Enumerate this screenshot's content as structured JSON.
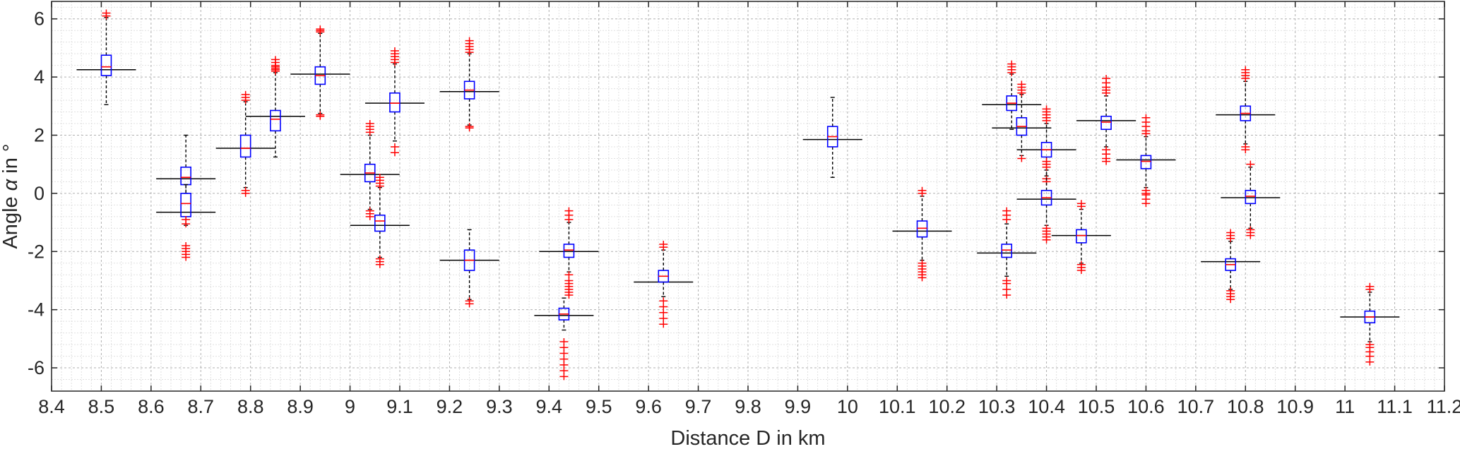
{
  "chart_data": {
    "type": "box",
    "xlabel": "Distance D in km",
    "ylabel_prefix": "Angle ",
    "ylabel_symbol": "α",
    "ylabel_suffix": " in °",
    "xlim": [
      8.4,
      11.2
    ],
    "ylim": [
      -6.8,
      6.6
    ],
    "x_ticks": [
      8.4,
      8.5,
      8.6,
      8.7,
      8.8,
      8.9,
      9.0,
      9.1,
      9.2,
      9.3,
      9.4,
      9.5,
      9.6,
      9.7,
      9.8,
      9.9,
      10.0,
      10.1,
      10.2,
      10.3,
      10.4,
      10.5,
      10.6,
      10.7,
      10.8,
      10.9,
      11.0,
      11.1,
      11.2
    ],
    "x_tick_labels": [
      "8.4",
      "8.5",
      "8.6",
      "8.7",
      "8.8",
      "8.9",
      "9",
      "9.1",
      "9.2",
      "9.3",
      "9.4",
      "9.5",
      "9.6",
      "9.7",
      "9.8",
      "9.9",
      "10",
      "10.1",
      "10.2",
      "10.3",
      "10.4",
      "10.5",
      "10.6",
      "10.7",
      "10.8",
      "10.9",
      "11",
      "11.1",
      "11.2"
    ],
    "y_ticks": [
      -6,
      -4,
      -2,
      0,
      2,
      4,
      6
    ],
    "y_tick_labels": [
      "-6",
      "-4",
      "-2",
      "0",
      "2",
      "4",
      "6"
    ],
    "grid": true,
    "minor_grid": true,
    "colors": {
      "box": "#0000ff",
      "median": "#ff0000",
      "outlier": "#ff0000",
      "whisker": "#000000",
      "reference_line": "#000000",
      "grid_major": "#b0b0b0",
      "grid_minor": "#e0e0e0"
    },
    "boxes": [
      {
        "x": 8.51,
        "q1": 4.05,
        "median": 4.35,
        "q3": 4.75,
        "whisker_low": 3.05,
        "whisker_high": 6.05,
        "ref": 4.25,
        "outliers": [
          6.1,
          6.2
        ]
      },
      {
        "x": 8.67,
        "q1": 0.3,
        "median": 0.55,
        "q3": 0.9,
        "whisker_low": 0.0,
        "whisker_high": 2.0,
        "ref": 0.5,
        "outliers": []
      },
      {
        "x": 8.67,
        "q1": -0.8,
        "median": -0.35,
        "q3": 0.0,
        "whisker_low": -1.1,
        "whisker_high": 0.3,
        "ref": -0.65,
        "outliers": [
          -1.8,
          -1.9,
          -2.0,
          -2.1,
          -2.2,
          -0.9,
          -1.05
        ]
      },
      {
        "x": 8.79,
        "q1": 1.25,
        "median": 1.55,
        "q3": 2.0,
        "whisker_low": 0.2,
        "whisker_high": 3.15,
        "ref": 1.55,
        "outliers": [
          3.2,
          3.3,
          3.4,
          0.1,
          0.0
        ]
      },
      {
        "x": 8.85,
        "q1": 2.15,
        "median": 2.55,
        "q3": 2.85,
        "whisker_low": 1.25,
        "whisker_high": 4.15,
        "ref": 2.65,
        "outliers": [
          4.2,
          4.25,
          4.3,
          4.35,
          4.4,
          4.5,
          4.6
        ]
      },
      {
        "x": 8.94,
        "q1": 3.75,
        "median": 4.05,
        "q3": 4.35,
        "whisker_low": 2.75,
        "whisker_high": 5.5,
        "ref": 4.1,
        "outliers": [
          5.55,
          5.6,
          5.65,
          2.7,
          2.65
        ]
      },
      {
        "x": 9.04,
        "q1": 0.4,
        "median": 0.7,
        "q3": 1.0,
        "whisker_low": -0.55,
        "whisker_high": 2.0,
        "ref": 0.65,
        "outliers": [
          2.1,
          2.2,
          2.3,
          2.4,
          -0.6,
          -0.7,
          -0.8
        ]
      },
      {
        "x": 9.06,
        "q1": -1.3,
        "median": -0.95,
        "q3": -0.75,
        "whisker_low": -2.2,
        "whisker_high": 0.2,
        "ref": -1.1,
        "outliers": [
          0.25,
          0.35,
          0.45,
          0.55,
          -2.25,
          -2.35,
          -2.45
        ]
      },
      {
        "x": 9.09,
        "q1": 2.8,
        "median": 3.1,
        "q3": 3.45,
        "whisker_low": 1.8,
        "whisker_high": 4.45,
        "ref": 3.1,
        "outliers": [
          4.5,
          4.6,
          4.7,
          4.8,
          4.9,
          1.6,
          1.4
        ]
      },
      {
        "x": 9.24,
        "q1": 3.25,
        "median": 3.55,
        "q3": 3.85,
        "whisker_low": 2.35,
        "whisker_high": 4.8,
        "ref": 3.5,
        "outliers": [
          4.85,
          4.95,
          5.05,
          5.15,
          5.25,
          2.3,
          2.25
        ]
      },
      {
        "x": 9.24,
        "q1": -2.65,
        "median": -2.3,
        "q3": -1.95,
        "whisker_low": -3.65,
        "whisker_high": -1.25,
        "ref": -2.3,
        "outliers": [
          -3.7,
          -3.8
        ]
      },
      {
        "x": 9.44,
        "q1": -2.2,
        "median": -1.95,
        "q3": -1.75,
        "whisker_low": -2.7,
        "whisker_high": -1.0,
        "ref": -2.0,
        "outliers": [
          -0.9,
          -0.75,
          -0.6,
          -2.8,
          -3.0,
          -3.1,
          -3.2,
          -3.3,
          -3.4,
          -3.5
        ]
      },
      {
        "x": 9.43,
        "q1": -4.35,
        "median": -4.15,
        "q3": -3.95,
        "whisker_low": -4.7,
        "whisker_high": -3.6,
        "ref": -4.2,
        "outliers": [
          -5.1,
          -5.3,
          -5.5,
          -5.7,
          -5.9,
          -6.1,
          -6.3
        ]
      },
      {
        "x": 9.63,
        "q1": -3.05,
        "median": -2.85,
        "q3": -2.65,
        "whisker_low": -3.55,
        "whisker_high": -1.95,
        "ref": -3.05,
        "outliers": [
          -1.85,
          -1.75,
          -3.7,
          -3.9,
          -4.1,
          -4.3,
          -4.5
        ]
      },
      {
        "x": 9.97,
        "q1": 1.6,
        "median": 1.95,
        "q3": 2.3,
        "whisker_low": 0.55,
        "whisker_high": 3.3,
        "ref": 1.85,
        "outliers": []
      },
      {
        "x": 10.15,
        "q1": -1.5,
        "median": -1.2,
        "q3": -0.95,
        "whisker_low": -2.3,
        "whisker_high": -0.1,
        "ref": -1.3,
        "outliers": [
          0.0,
          0.1,
          -2.4,
          -2.5,
          -2.6,
          -2.7,
          -2.8,
          -2.9
        ]
      },
      {
        "x": 10.32,
        "q1": -2.2,
        "median": -1.95,
        "q3": -1.75,
        "whisker_low": -2.85,
        "whisker_high": -1.05,
        "ref": -2.05,
        "outliers": [
          -0.9,
          -0.75,
          -0.6,
          -3.0,
          -3.1,
          -3.3,
          -3.5
        ]
      },
      {
        "x": 10.33,
        "q1": 2.85,
        "median": 3.1,
        "q3": 3.35,
        "whisker_low": 2.2,
        "whisker_high": 4.1,
        "ref": 3.05,
        "outliers": [
          4.15,
          4.25,
          4.35,
          4.45
        ]
      },
      {
        "x": 10.35,
        "q1": 2.0,
        "median": 2.3,
        "q3": 2.6,
        "whisker_low": 1.3,
        "whisker_high": 3.4,
        "ref": 2.25,
        "outliers": [
          3.45,
          3.55,
          3.65,
          3.75,
          1.2
        ]
      },
      {
        "x": 10.4,
        "q1": 1.25,
        "median": 1.5,
        "q3": 1.75,
        "whisker_low": 0.6,
        "whisker_high": 2.4,
        "ref": 1.5,
        "outliers": [
          2.5,
          2.6,
          2.7,
          2.8,
          2.9,
          0.5,
          0.4
        ]
      },
      {
        "x": 10.4,
        "q1": -0.4,
        "median": -0.15,
        "q3": 0.1,
        "whisker_low": -1.1,
        "whisker_high": 0.8,
        "ref": -0.2,
        "outliers": [
          0.9,
          1.0,
          1.1,
          -1.2,
          -1.3,
          -1.4,
          -1.5,
          -1.6
        ]
      },
      {
        "x": 10.47,
        "q1": -1.7,
        "median": -1.45,
        "q3": -1.25,
        "whisker_low": -2.4,
        "whisker_high": -0.55,
        "ref": -1.45,
        "outliers": [
          -0.45,
          -0.35,
          -2.45,
          -2.55,
          -2.65
        ]
      },
      {
        "x": 10.52,
        "q1": 2.2,
        "median": 2.45,
        "q3": 2.65,
        "whisker_low": 1.6,
        "whisker_high": 3.35,
        "ref": 2.5,
        "outliers": [
          3.45,
          3.55,
          3.65,
          3.8,
          3.95,
          1.5,
          1.35,
          1.2,
          1.1
        ]
      },
      {
        "x": 10.6,
        "q1": 0.85,
        "median": 1.1,
        "q3": 1.3,
        "whisker_low": 0.2,
        "whisker_high": 1.95,
        "ref": 1.15,
        "outliers": [
          2.05,
          2.15,
          2.3,
          2.45,
          2.6,
          0.1,
          0.0,
          -0.05,
          -0.2,
          -0.35
        ]
      },
      {
        "x": 10.77,
        "q1": -2.65,
        "median": -2.45,
        "q3": -2.25,
        "whisker_low": -3.3,
        "whisker_high": -1.65,
        "ref": -2.35,
        "outliers": [
          -1.55,
          -1.45,
          -1.35,
          -3.35,
          -3.45,
          -3.55,
          -3.65
        ]
      },
      {
        "x": 10.8,
        "q1": 2.5,
        "median": 2.75,
        "q3": 3.0,
        "whisker_low": 1.7,
        "whisker_high": 3.85,
        "ref": 2.7,
        "outliers": [
          3.95,
          4.05,
          4.15,
          4.25,
          1.6,
          1.5
        ]
      },
      {
        "x": 10.81,
        "q1": -0.35,
        "median": -0.1,
        "q3": 0.1,
        "whisker_low": -1.2,
        "whisker_high": 0.9,
        "ref": -0.15,
        "outliers": [
          1.0,
          -1.25,
          -1.35,
          -1.45
        ]
      },
      {
        "x": 11.05,
        "q1": -4.45,
        "median": -4.25,
        "q3": -4.05,
        "whisker_low": -5.1,
        "whisker_high": -3.4,
        "ref": -4.25,
        "outliers": [
          -3.3,
          -3.2,
          -5.2,
          -5.3,
          -5.45,
          -5.6,
          -5.8
        ]
      }
    ]
  }
}
